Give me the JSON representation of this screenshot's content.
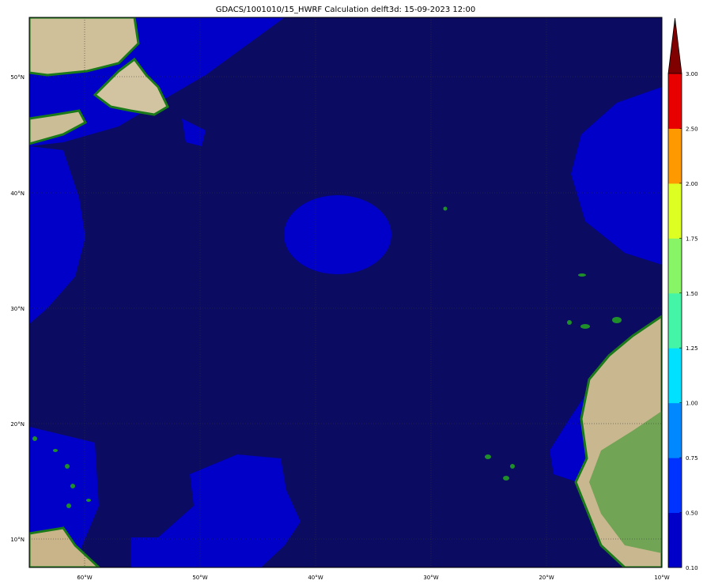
{
  "title": "GDACS/1001010/15_HWRF Calculation delft3d: 15-09-2023 12:00",
  "map": {
    "lon_range": [
      -65,
      -10
    ],
    "lat_range": [
      7.5,
      55
    ],
    "ocean_color": "#0b0b62",
    "lon_ticks": [
      "60°W",
      "50°W",
      "40°W",
      "30°W",
      "20°W",
      "10°W"
    ],
    "lat_ticks": [
      "10°N",
      "20°N",
      "30°N",
      "40°N",
      "50°N"
    ]
  },
  "colorbar": {
    "levels": [
      "0.10",
      "0.50",
      "0.75",
      "1.00",
      "1.25",
      "1.50",
      "1.75",
      "2.00",
      "2.50",
      "3.00"
    ],
    "colors": [
      "#0000c8",
      "#0033ff",
      "#0088ff",
      "#00e0ff",
      "#44f5a8",
      "#88f566",
      "#ddff22",
      "#ff9900",
      "#e80000"
    ],
    "extend_color": "#800000",
    "extend": "max"
  }
}
